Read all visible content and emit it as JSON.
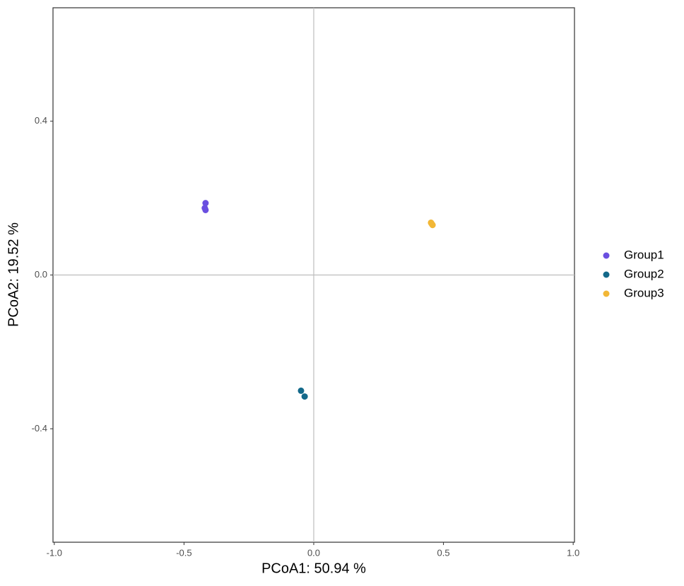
{
  "chart_data": {
    "type": "scatter",
    "x_label": "PCoA1: 50.94 %",
    "y_label": "PCoA2: 19.52 %",
    "xlim": [
      -1.005,
      1.005
    ],
    "ylim": [
      -0.695,
      0.695
    ],
    "xticks": [
      {
        "value": -1,
        "label": "-1.0"
      },
      {
        "value": -0.5,
        "label": "-0.5"
      },
      {
        "value": 0,
        "label": "0.0"
      },
      {
        "value": 0.5,
        "label": "0.5"
      },
      {
        "value": 1,
        "label": "1.0"
      }
    ],
    "yticks": [
      {
        "value": 0.4,
        "label": "0.4"
      },
      {
        "value": 0,
        "label": "0.0"
      },
      {
        "value": -0.4,
        "label": "-0.4"
      }
    ],
    "hline": 0,
    "vline": 0,
    "legend": "right",
    "series": [
      {
        "name": "Group1",
        "color": "#6a4fe0",
        "x": [
          -0.417,
          -0.42,
          -0.417
        ],
        "y": [
          0.187,
          0.174,
          0.169
        ]
      },
      {
        "name": "Group2",
        "color": "#13698a",
        "x": [
          -0.049,
          -0.035
        ],
        "y": [
          -0.301,
          -0.316
        ]
      },
      {
        "name": "Group3",
        "color": "#f2b736",
        "x": [
          0.452,
          0.458,
          0.455
        ],
        "y": [
          0.136,
          0.13,
          0.133
        ]
      }
    ]
  }
}
